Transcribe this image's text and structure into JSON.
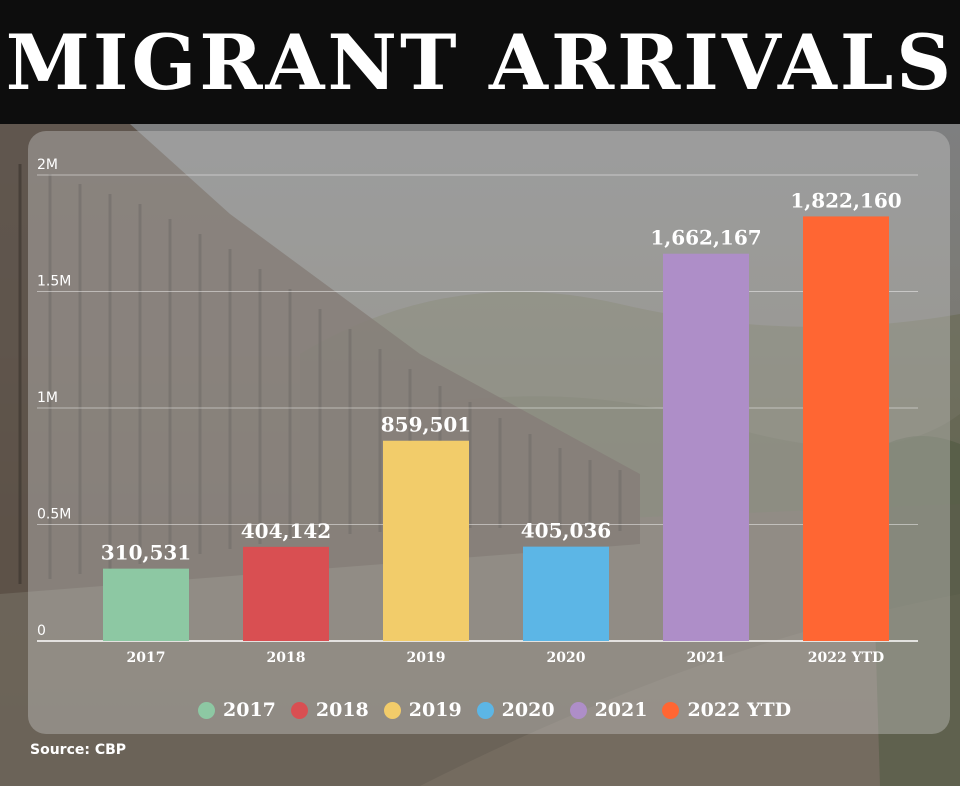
{
  "title": "MIGRANT ARRIVALS",
  "source": "Source: CBP",
  "chart_data": {
    "type": "bar",
    "categories": [
      "2017",
      "2018",
      "2019",
      "2020",
      "2021",
      "2022 YTD"
    ],
    "values": [
      310531,
      404142,
      859501,
      405036,
      1662167,
      1822160
    ],
    "value_labels": [
      "310,531",
      "404,142",
      "859,501",
      "405,036",
      "1,662,167",
      "1,822,160"
    ],
    "colors": [
      "#8dc8a3",
      "#d94f52",
      "#f2cc6a",
      "#5cb6e6",
      "#ae8ec8",
      "#ff6633"
    ],
    "yticks": [
      0,
      500000,
      1000000,
      1500000,
      2000000
    ],
    "ytick_labels": [
      "0",
      "0.5M",
      "1M",
      "1.5M",
      "2M"
    ],
    "ylim": [
      0,
      2000000
    ],
    "grid": true,
    "legend": {
      "position": "bottom",
      "labels": [
        "2017",
        "2018",
        "2019",
        "2020",
        "2021",
        "2022 YTD"
      ]
    }
  }
}
